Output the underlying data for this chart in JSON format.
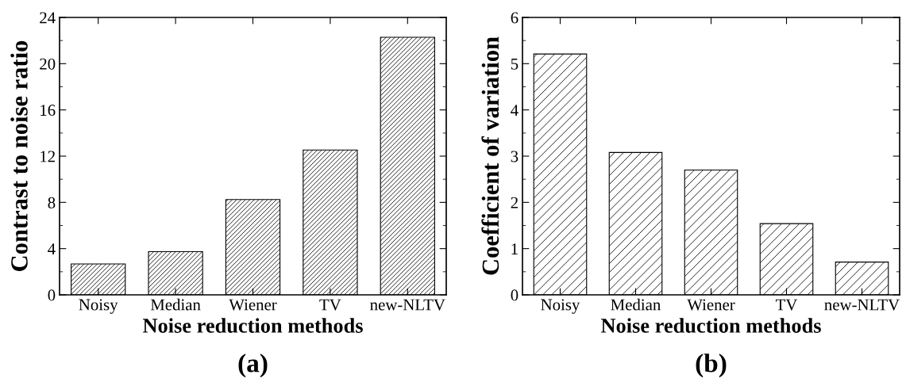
{
  "chart_data": [
    {
      "type": "bar",
      "xlabel": "Noise reduction methods",
      "ylabel": "Contrast to noise ratio",
      "categories": [
        "Noisy",
        "Median",
        "Wiener",
        "TV",
        "new-NLTV"
      ],
      "values": [
        2.67,
        3.74,
        8.25,
        12.53,
        22.29
      ],
      "color": "#000000",
      "ylim": [
        0,
        24
      ],
      "yticks": [
        0,
        4,
        8,
        12,
        16,
        20,
        24
      ],
      "grid": false,
      "legend": false,
      "annotations": [
        "(a)"
      ]
    },
    {
      "type": "bar",
      "xlabel": "Noise reduction methods",
      "ylabel": "Coefficient of variation",
      "categories": [
        "Noisy",
        "Median",
        "Wiener",
        "TV",
        "new-NLTV"
      ],
      "values": [
        5.21,
        3.08,
        2.7,
        1.54,
        0.71
      ],
      "color": "#000000",
      "ylim": [
        0,
        6
      ],
      "yticks": [
        0,
        1,
        2,
        3,
        4,
        5,
        6
      ],
      "grid": false,
      "legend": false,
      "annotations": [
        "(b)"
      ]
    }
  ]
}
